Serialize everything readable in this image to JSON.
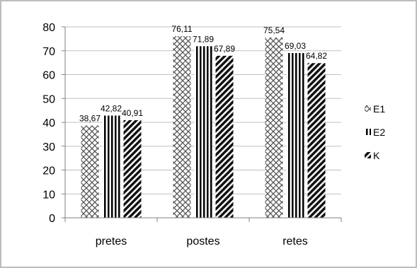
{
  "chart_data": {
    "type": "bar",
    "categories": [
      "pretes",
      "postes",
      "retes"
    ],
    "series": [
      {
        "name": "E1",
        "values": [
          38.67,
          76.11,
          75.54
        ],
        "labels": [
          "38,67",
          "76,11",
          "75,54"
        ],
        "pattern": "crosshatch"
      },
      {
        "name": "E2",
        "values": [
          42.82,
          71.89,
          69.03
        ],
        "labels": [
          "42,82",
          "71,89",
          "69,03"
        ],
        "pattern": "vertical-stripes"
      },
      {
        "name": "K",
        "values": [
          40.91,
          67.89,
          64.82
        ],
        "labels": [
          "40,91",
          "67,89",
          "64,82"
        ],
        "pattern": "diagonal-stripes"
      }
    ],
    "ylim": [
      0,
      80
    ],
    "yticks": [
      0,
      10,
      20,
      30,
      40,
      50,
      60,
      70,
      80
    ],
    "grid": true,
    "legend_position": "right"
  }
}
